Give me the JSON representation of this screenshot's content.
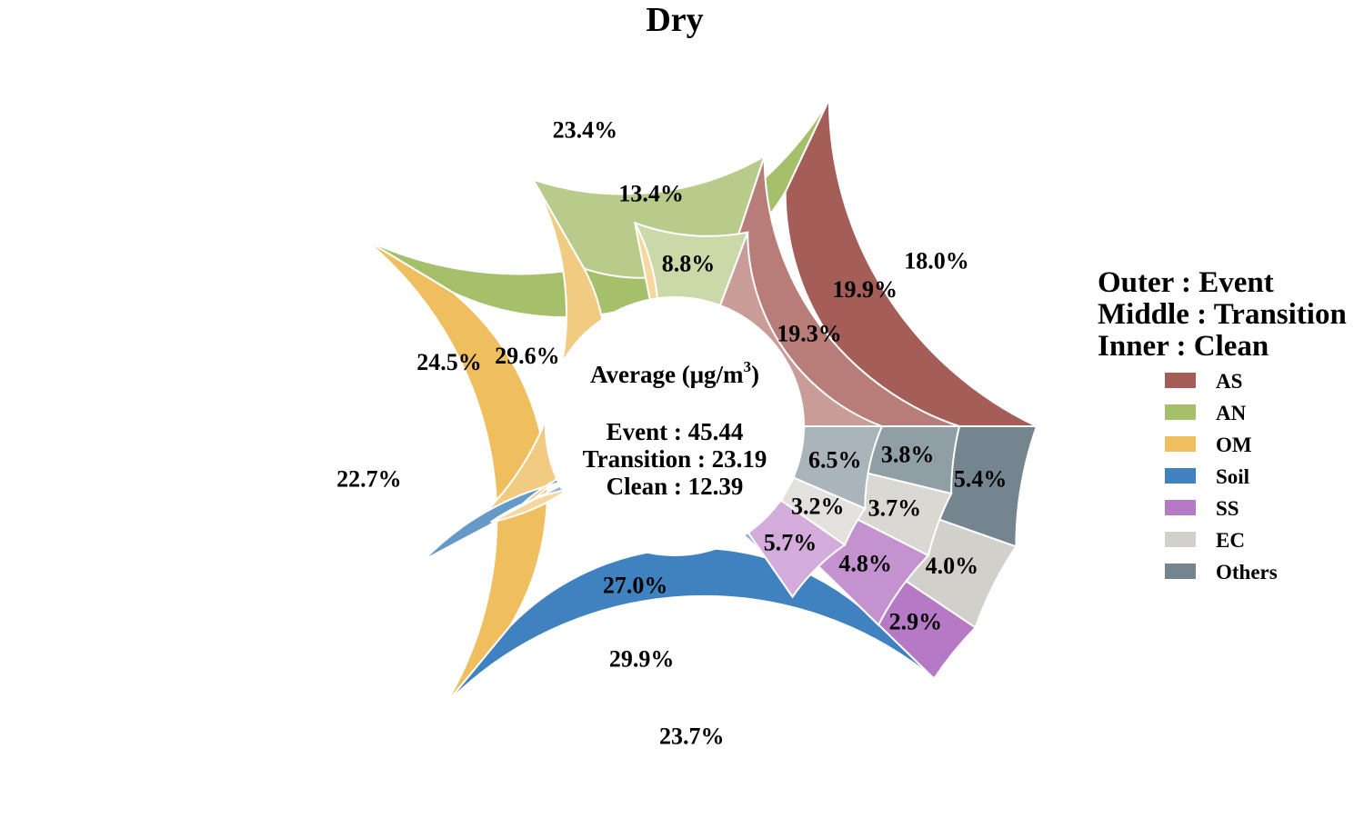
{
  "chart_data": {
    "type": "pie",
    "subtype": "nested-donut",
    "title": "Dry",
    "categories": [
      "AS",
      "AN",
      "OM",
      "Soil",
      "SS",
      "EC",
      "Others"
    ],
    "colors": {
      "outer": [
        "#A55E57",
        "#A6BF6B",
        "#EFBE5F",
        "#3F82BF",
        "#B679C6",
        "#D2D0CB",
        "#74858F"
      ],
      "middle": [
        "#B87D78",
        "#B8CB8B",
        "#F2CB83",
        "#6599C8",
        "#C592D0",
        "#DAD8D3",
        "#909EA6"
      ],
      "inner": [
        "#C99C98",
        "#CBD9A9",
        "#F5D8A0",
        "#8EB3D7",
        "#D4ACDC",
        "#E3E1DD",
        "#AAB5BB"
      ]
    },
    "series": [
      {
        "name": "Event",
        "ring": "outer",
        "values": [
          18.0,
          23.4,
          22.7,
          23.7,
          2.9,
          4.0,
          5.4
        ],
        "labels": [
          "18.0%",
          "23.4%",
          "22.7%",
          "23.7%",
          "2.9%",
          "4.0%",
          "5.4%"
        ]
      },
      {
        "name": "Transition",
        "ring": "middle",
        "values": [
          19.9,
          13.4,
          24.5,
          29.9,
          4.8,
          3.7,
          3.8
        ],
        "labels": [
          "19.9%",
          "13.4%",
          "24.5%",
          "29.9%",
          "4.8%",
          "3.7%",
          "3.8%"
        ]
      },
      {
        "name": "Clean",
        "ring": "inner",
        "values": [
          19.3,
          8.8,
          29.6,
          27.0,
          5.7,
          3.2,
          6.5
        ],
        "labels": [
          "19.3%",
          "8.8%",
          "29.6%",
          "27.0%",
          "5.7%",
          "3.2%",
          "6.5%"
        ]
      }
    ],
    "center": {
      "heading_main": "Average (μg/m",
      "heading_sup": "3",
      "heading_close": ")",
      "lines": [
        "Event : 45.44",
        "Transition : 23.19",
        "Clean : 12.39"
      ]
    },
    "legend": {
      "position": "right",
      "headings": [
        "Outer : Event",
        "Middle : Transition",
        "Inner : Clean"
      ],
      "entries": [
        "AS",
        "AN",
        "OM",
        "Soil",
        "SS",
        "EC",
        "Others"
      ]
    }
  }
}
